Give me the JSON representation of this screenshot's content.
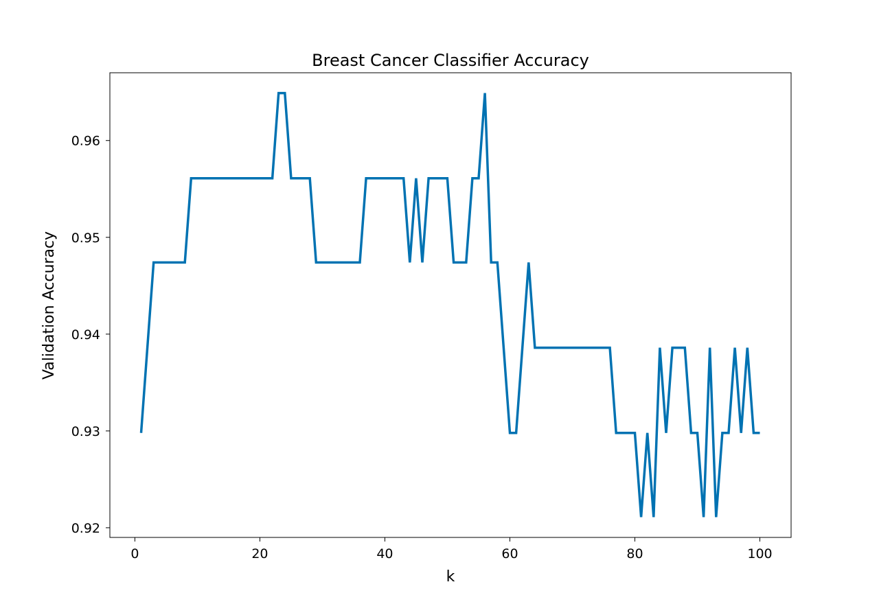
{
  "chart_data": {
    "type": "line",
    "title": "Breast Cancer Classifier Accuracy",
    "xlabel": "k",
    "ylabel": "Validation Accuracy",
    "xlim": [
      -4,
      105
    ],
    "ylim": [
      0.919,
      0.967
    ],
    "xticks": [
      0,
      20,
      40,
      60,
      80,
      100
    ],
    "yticks": [
      0.92,
      0.93,
      0.94,
      0.95,
      0.96
    ],
    "xtick_labels": [
      "0",
      "20",
      "40",
      "60",
      "80",
      "100"
    ],
    "ytick_labels": [
      "0.92",
      "0.93",
      "0.94",
      "0.95",
      "0.96"
    ],
    "grid": false,
    "series": [
      {
        "color": "#0072b2",
        "x": [
          1,
          2,
          3,
          4,
          5,
          6,
          7,
          8,
          9,
          10,
          11,
          12,
          13,
          14,
          15,
          16,
          17,
          18,
          19,
          20,
          21,
          22,
          23,
          24,
          25,
          26,
          27,
          28,
          29,
          30,
          31,
          32,
          33,
          34,
          35,
          36,
          37,
          38,
          39,
          40,
          41,
          42,
          43,
          44,
          45,
          46,
          47,
          48,
          49,
          50,
          51,
          52,
          53,
          54,
          55,
          56,
          57,
          58,
          59,
          60,
          61,
          62,
          63,
          64,
          65,
          66,
          67,
          68,
          69,
          70,
          71,
          72,
          73,
          74,
          75,
          76,
          77,
          78,
          79,
          80,
          81,
          82,
          83,
          84,
          85,
          86,
          87,
          88,
          89,
          90,
          91,
          92,
          93,
          94,
          95,
          96,
          97,
          98,
          99,
          100
        ],
        "values": [
          0.9298,
          0.9386,
          0.9474,
          0.9474,
          0.9474,
          0.9474,
          0.9474,
          0.9474,
          0.9561,
          0.9561,
          0.9561,
          0.9561,
          0.9561,
          0.9561,
          0.9561,
          0.9561,
          0.9561,
          0.9561,
          0.9561,
          0.9561,
          0.9561,
          0.9561,
          0.9649,
          0.9649,
          0.9561,
          0.9561,
          0.9561,
          0.9561,
          0.9474,
          0.9474,
          0.9474,
          0.9474,
          0.9474,
          0.9474,
          0.9474,
          0.9474,
          0.9561,
          0.9561,
          0.9561,
          0.9561,
          0.9561,
          0.9561,
          0.9561,
          0.9474,
          0.9561,
          0.9474,
          0.9561,
          0.9561,
          0.9561,
          0.9561,
          0.9474,
          0.9474,
          0.9474,
          0.9561,
          0.9561,
          0.9649,
          0.9474,
          0.9474,
          0.9386,
          0.9298,
          0.9298,
          0.9386,
          0.9474,
          0.9386,
          0.9386,
          0.9386,
          0.9386,
          0.9386,
          0.9386,
          0.9386,
          0.9386,
          0.9386,
          0.9386,
          0.9386,
          0.9386,
          0.9386,
          0.9298,
          0.9298,
          0.9298,
          0.9298,
          0.9211,
          0.9298,
          0.9211,
          0.9386,
          0.9298,
          0.9386,
          0.9386,
          0.9386,
          0.9298,
          0.9298,
          0.9211,
          0.9386,
          0.9211,
          0.9298,
          0.9298,
          0.9386,
          0.9298,
          0.9386,
          0.9298,
          0.9298
        ]
      }
    ]
  }
}
